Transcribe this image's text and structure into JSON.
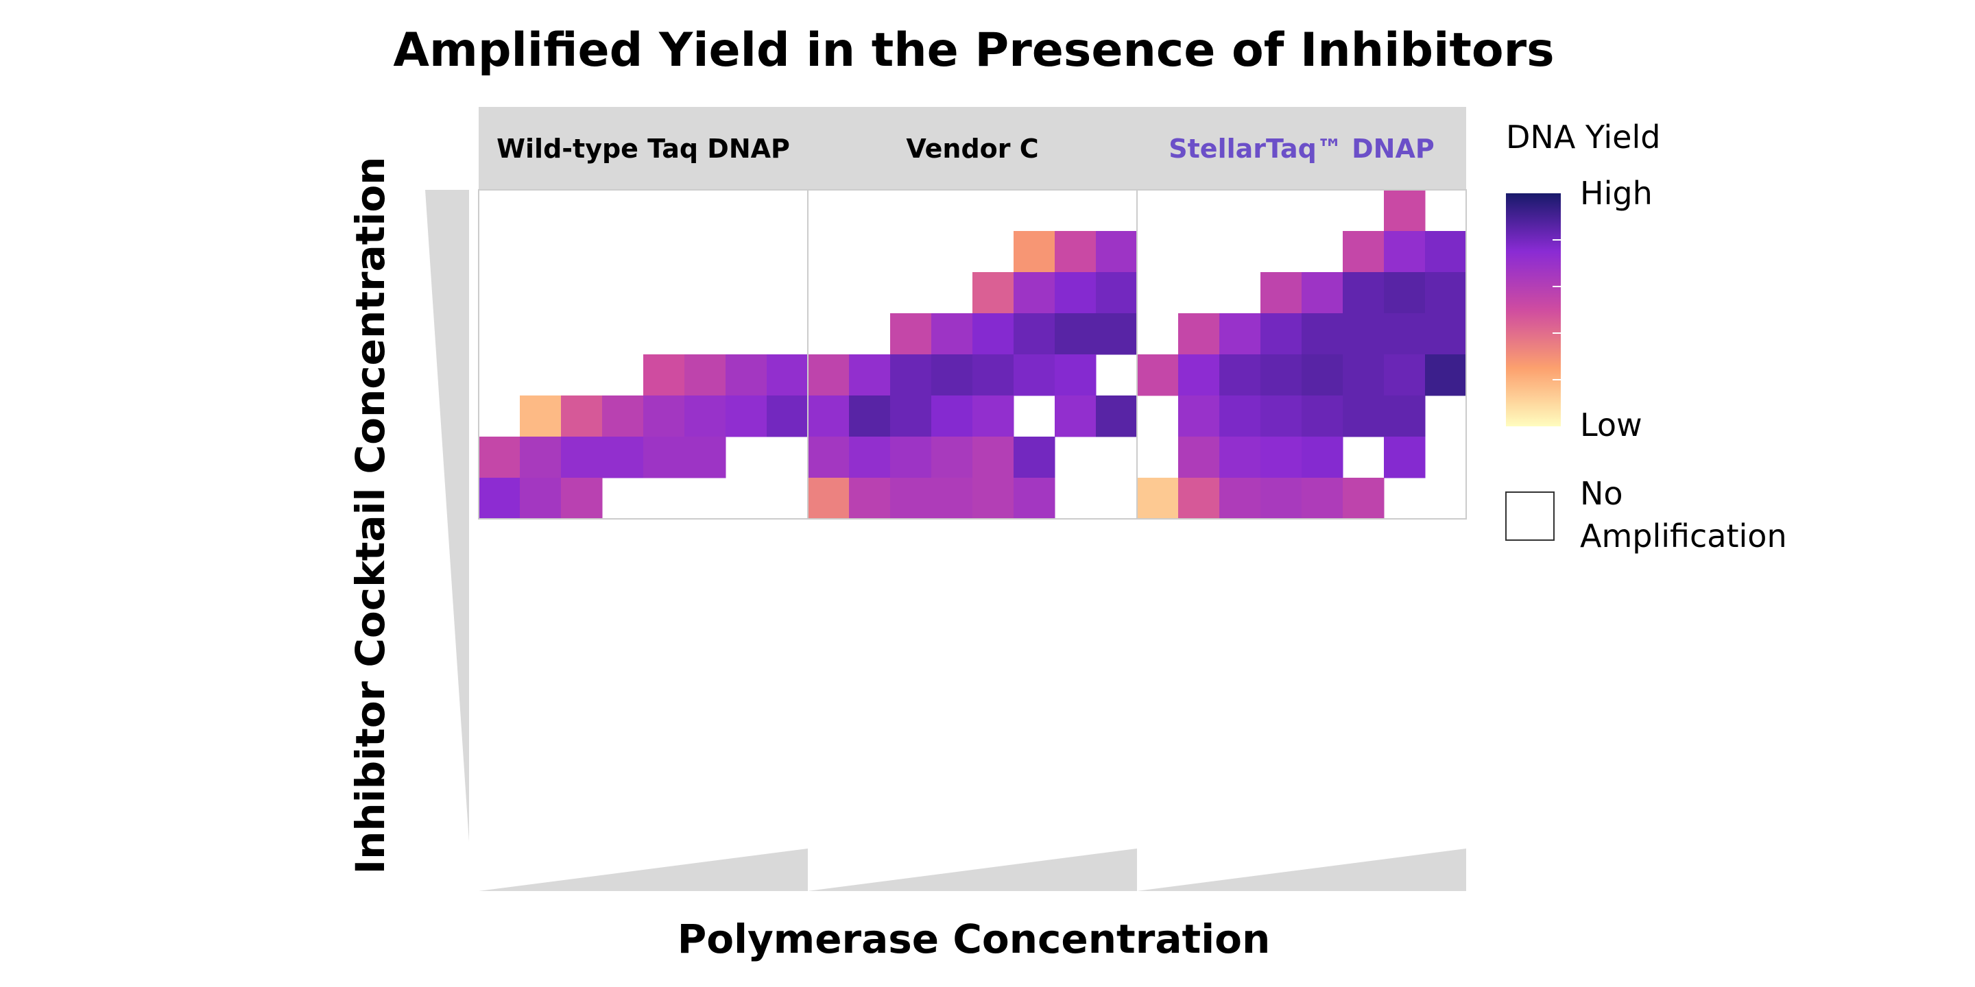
{
  "chart_data": {
    "type": "heatmap",
    "title": "Amplified Yield in the Presence of Inhibitors",
    "xlabel": "Polymerase Concentration",
    "ylabel": "Inhibitor Cocktail Concentration",
    "value_scale": "0 = low yield, 1 = high yield, null = no amplification",
    "rows_order": "row 0 = highest inhibitor concentration (top), row 7 = lowest (bottom)",
    "columns_order": "column 0 = lowest polymerase concentration (left)",
    "facets": [
      {
        "name": "Wild-type Taq DNAP",
        "highlight": false,
        "cells": [
          [
            null,
            null,
            null,
            null,
            null,
            null,
            null,
            null
          ],
          [
            null,
            null,
            null,
            null,
            null,
            null,
            null,
            null
          ],
          [
            null,
            null,
            null,
            null,
            null,
            null,
            null,
            null
          ],
          [
            null,
            null,
            null,
            null,
            null,
            null,
            null,
            null
          ],
          [
            null,
            null,
            null,
            null,
            0.5,
            0.56,
            0.66,
            0.72
          ],
          [
            null,
            0.18,
            0.46,
            0.58,
            0.66,
            0.7,
            0.73,
            0.8
          ],
          [
            0.54,
            0.64,
            0.72,
            0.72,
            0.68,
            0.68,
            null,
            null
          ],
          [
            0.74,
            0.66,
            0.58,
            null,
            null,
            null,
            null,
            null
          ]
        ]
      },
      {
        "name": "Vendor C",
        "highlight": false,
        "cells": [
          [
            null,
            null,
            null,
            null,
            null,
            null,
            null,
            null
          ],
          [
            null,
            null,
            null,
            null,
            null,
            0.28,
            0.52,
            0.68
          ],
          [
            null,
            null,
            null,
            null,
            0.44,
            0.68,
            0.76,
            0.8
          ],
          [
            null,
            null,
            0.54,
            0.68,
            0.76,
            0.82,
            0.86,
            0.86
          ],
          [
            0.56,
            0.72,
            0.82,
            0.84,
            0.82,
            0.78,
            0.76,
            null
          ],
          [
            0.72,
            0.86,
            0.82,
            0.76,
            0.72,
            null,
            0.72,
            0.86
          ],
          [
            0.66,
            0.72,
            0.68,
            0.64,
            0.6,
            0.8,
            null,
            null
          ],
          [
            0.34,
            0.58,
            0.62,
            0.62,
            0.6,
            0.66,
            null,
            null
          ]
        ]
      },
      {
        "name": "StellarTaq™ DNAP",
        "highlight": true,
        "cells": [
          [
            null,
            null,
            null,
            null,
            null,
            null,
            0.52,
            null
          ],
          [
            null,
            null,
            null,
            null,
            null,
            0.54,
            0.72,
            0.78
          ],
          [
            null,
            null,
            null,
            0.56,
            0.68,
            0.84,
            0.86,
            0.84
          ],
          [
            null,
            0.54,
            0.7,
            0.8,
            0.84,
            0.84,
            0.84,
            0.84
          ],
          [
            0.54,
            0.74,
            0.82,
            0.84,
            0.86,
            0.84,
            0.82,
            0.92
          ],
          [
            null,
            0.7,
            0.78,
            0.8,
            0.82,
            0.84,
            0.84,
            null
          ],
          [
            null,
            0.62,
            0.72,
            0.74,
            0.76,
            null,
            0.76,
            null
          ],
          [
            0.14,
            0.46,
            0.62,
            0.64,
            0.62,
            0.56,
            null,
            null
          ]
        ]
      }
    ],
    "legend": {
      "title": "DNA Yield",
      "high_label": "High",
      "low_label": "Low",
      "na_label_line1": "No",
      "na_label_line2": "Amplification"
    },
    "colors": {
      "highlight_text": "#6b4fc8",
      "strip_bg": "#d9d9d9",
      "panel_border": "#cccccc",
      "wedge_fill": "#d9d9d9",
      "scale_low": "#fffdbf",
      "scale_mid_low": "#fca06e",
      "scale_mid": "#cf4ca0",
      "scale_mid_high": "#8a2bd4",
      "scale_high": "#181a6a"
    }
  }
}
